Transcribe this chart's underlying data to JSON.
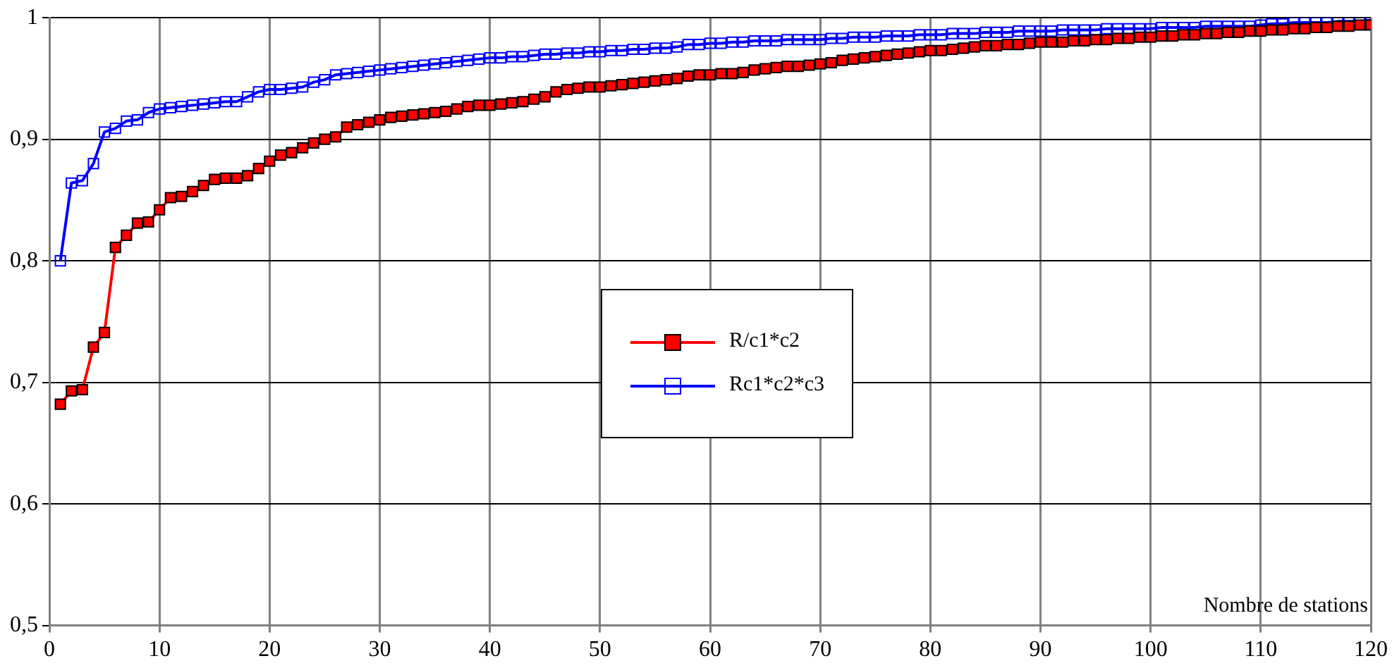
{
  "chart_data": {
    "type": "line",
    "xlabel": "Nombre de stations",
    "x": [
      1,
      2,
      3,
      4,
      5,
      6,
      7,
      8,
      9,
      10,
      11,
      12,
      13,
      14,
      15,
      16,
      17,
      18,
      19,
      20,
      21,
      22,
      23,
      24,
      25,
      26,
      27,
      28,
      29,
      30,
      31,
      32,
      33,
      34,
      35,
      36,
      37,
      38,
      39,
      40,
      41,
      42,
      43,
      44,
      45,
      46,
      47,
      48,
      49,
      50,
      51,
      52,
      53,
      54,
      55,
      56,
      57,
      58,
      59,
      60,
      61,
      62,
      63,
      64,
      65,
      66,
      67,
      68,
      69,
      70,
      71,
      72,
      73,
      74,
      75,
      76,
      77,
      78,
      79,
      80,
      81,
      82,
      83,
      84,
      85,
      86,
      87,
      88,
      89,
      90,
      91,
      92,
      93,
      94,
      95,
      96,
      97,
      98,
      99,
      100,
      101,
      102,
      103,
      104,
      105,
      106,
      107,
      108,
      109,
      110,
      111,
      112,
      113,
      114,
      115,
      116,
      117,
      118,
      119,
      120
    ],
    "series": [
      {
        "name": "R/c1*c2",
        "color": "#ff0000",
        "values": [
          0.682,
          0.693,
          0.694,
          0.729,
          0.741,
          0.811,
          0.821,
          0.831,
          0.832,
          0.842,
          0.852,
          0.853,
          0.857,
          0.862,
          0.867,
          0.868,
          0.868,
          0.87,
          0.876,
          0.882,
          0.887,
          0.889,
          0.893,
          0.897,
          0.9,
          0.902,
          0.91,
          0.912,
          0.914,
          0.916,
          0.918,
          0.919,
          0.92,
          0.921,
          0.922,
          0.923,
          0.925,
          0.927,
          0.928,
          0.928,
          0.929,
          0.93,
          0.931,
          0.933,
          0.935,
          0.939,
          0.941,
          0.942,
          0.943,
          0.943,
          0.944,
          0.945,
          0.946,
          0.947,
          0.948,
          0.949,
          0.95,
          0.952,
          0.953,
          0.953,
          0.954,
          0.954,
          0.955,
          0.957,
          0.958,
          0.959,
          0.96,
          0.96,
          0.961,
          0.962,
          0.963,
          0.965,
          0.966,
          0.967,
          0.968,
          0.969,
          0.97,
          0.971,
          0.972,
          0.973,
          0.973,
          0.974,
          0.975,
          0.976,
          0.977,
          0.977,
          0.978,
          0.978,
          0.979,
          0.98,
          0.98,
          0.98,
          0.981,
          0.981,
          0.982,
          0.982,
          0.983,
          0.983,
          0.984,
          0.984,
          0.985,
          0.985,
          0.986,
          0.986,
          0.987,
          0.987,
          0.988,
          0.988,
          0.989,
          0.989,
          0.99,
          0.99,
          0.991,
          0.991,
          0.992,
          0.992,
          0.993,
          0.993,
          0.994,
          0.994
        ]
      },
      {
        "name": "Rc1*c2*c3",
        "color": "#0000ff",
        "values": [
          0.8,
          0.864,
          0.866,
          0.88,
          0.906,
          0.909,
          0.915,
          0.916,
          0.922,
          0.925,
          0.926,
          0.927,
          0.928,
          0.929,
          0.93,
          0.931,
          0.931,
          0.935,
          0.939,
          0.941,
          0.941,
          0.942,
          0.943,
          0.947,
          0.949,
          0.953,
          0.954,
          0.955,
          0.956,
          0.957,
          0.958,
          0.959,
          0.96,
          0.961,
          0.962,
          0.963,
          0.964,
          0.965,
          0.966,
          0.967,
          0.967,
          0.968,
          0.968,
          0.969,
          0.97,
          0.97,
          0.971,
          0.971,
          0.972,
          0.972,
          0.973,
          0.973,
          0.974,
          0.974,
          0.975,
          0.975,
          0.976,
          0.978,
          0.978,
          0.979,
          0.979,
          0.98,
          0.98,
          0.981,
          0.981,
          0.981,
          0.982,
          0.982,
          0.982,
          0.982,
          0.983,
          0.983,
          0.984,
          0.984,
          0.984,
          0.985,
          0.985,
          0.985,
          0.986,
          0.986,
          0.986,
          0.987,
          0.987,
          0.987,
          0.988,
          0.988,
          0.988,
          0.989,
          0.989,
          0.989,
          0.989,
          0.99,
          0.99,
          0.99,
          0.99,
          0.991,
          0.991,
          0.991,
          0.991,
          0.991,
          0.992,
          0.992,
          0.992,
          0.992,
          0.993,
          0.993,
          0.993,
          0.993,
          0.993,
          0.994,
          0.995,
          0.995,
          0.996,
          0.996,
          0.996,
          0.996,
          0.997,
          0.997,
          0.997,
          0.998
        ]
      }
    ],
    "xlim": [
      0,
      120
    ],
    "xticks": [
      0,
      10,
      20,
      30,
      40,
      50,
      60,
      70,
      80,
      90,
      100,
      110,
      120
    ],
    "ylim": [
      0.5,
      1
    ],
    "yticks": [
      {
        "value": 0.5,
        "label": "0,5"
      },
      {
        "value": 0.6,
        "label": "0,6"
      },
      {
        "value": 0.7,
        "label": "0,7"
      },
      {
        "value": 0.8,
        "label": "0,8"
      },
      {
        "value": 0.9,
        "label": "0,9"
      },
      {
        "value": 1,
        "label": "1"
      }
    ],
    "grid": true,
    "legend": "center",
    "marker": "square",
    "line_style": "solid"
  }
}
